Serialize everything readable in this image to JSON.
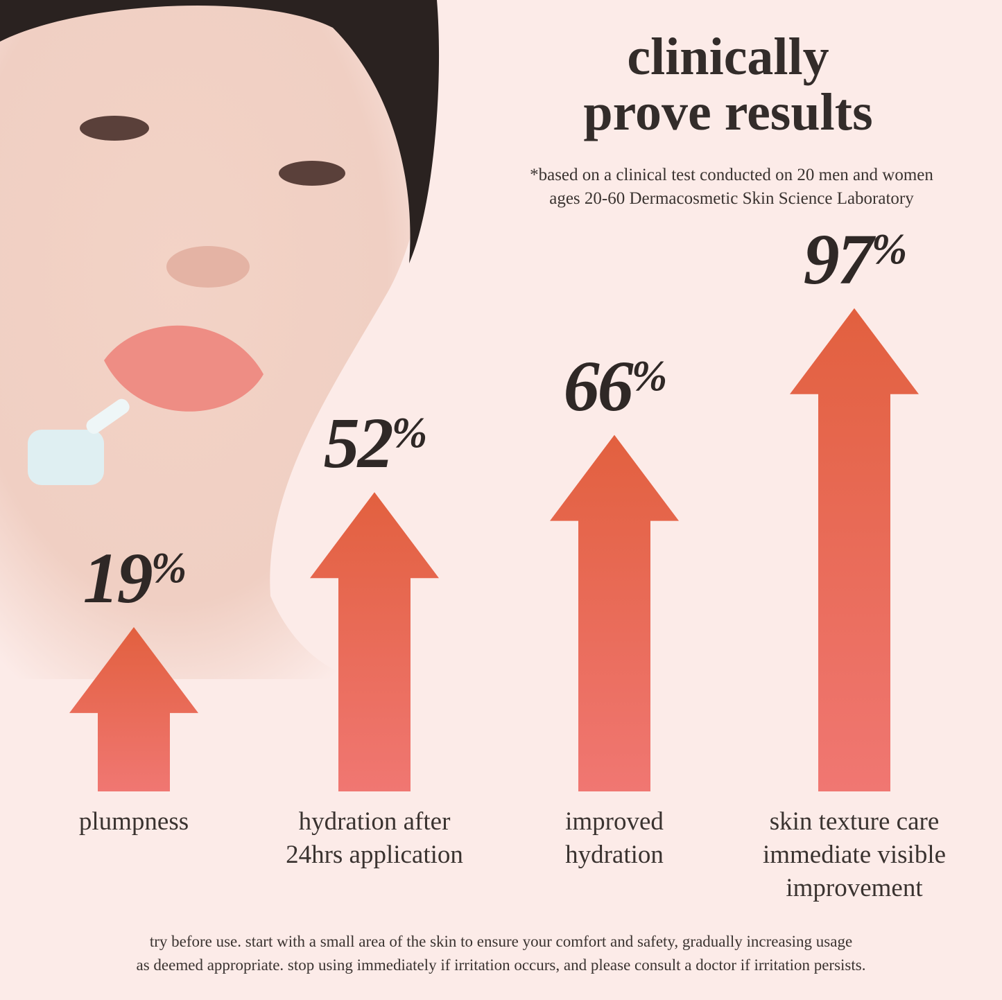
{
  "header": {
    "title_line1": "clinically",
    "title_line2": "prove results",
    "note_line1": "*based on a clinical test conducted on 20 men and women",
    "note_line2": "ages 20-60 Dermacosmetic Skin Science Laboratory"
  },
  "footer": {
    "line1": "try before use. start with a small area of the skin to ensure your comfort and safety, gradually increasing usage",
    "line2": "as deemed appropriate. stop using immediately if irritation occurs, and please consult a doctor if irritation persists."
  },
  "colors": {
    "background": "#fcebe8",
    "arrow_top": "#e2603f",
    "arrow_bottom": "#f07772",
    "text": "#332c2a"
  },
  "chart_data": {
    "type": "bar",
    "mark": "arrow",
    "categories": [
      "plumpness",
      "hydration after 24hrs application",
      "improved hydration",
      "skin texture care immediate visible improvement"
    ],
    "category_lines": [
      [
        "plumpness"
      ],
      [
        "hydration after",
        "24hrs application"
      ],
      [
        "improved",
        "hydration"
      ],
      [
        "skin texture care",
        "immediate visible",
        "improvement"
      ]
    ],
    "values": [
      19,
      52,
      66,
      97
    ],
    "labels": [
      "19",
      "52",
      "66",
      "97"
    ],
    "unit": "%"
  }
}
